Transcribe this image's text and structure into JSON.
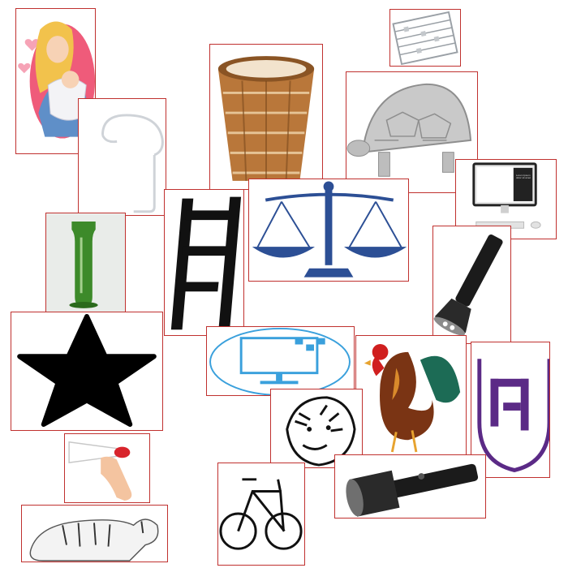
{
  "tiles": [
    {
      "icon": "mother-baby-icon"
    },
    {
      "icon": "hook-hanger-icon"
    },
    {
      "icon": "wicker-basket-icon"
    },
    {
      "icon": "abacus-icon"
    },
    {
      "icon": "tortoise-icon"
    },
    {
      "icon": "desktop-computer-icon"
    },
    {
      "icon": "glass-vase-icon"
    },
    {
      "icon": "ladder-icon"
    },
    {
      "icon": "balance-scale-icon"
    },
    {
      "icon": "flashlight-icon"
    },
    {
      "icon": "star-icon"
    },
    {
      "icon": "computer-monitor-icon"
    },
    {
      "icon": "rooster-icon"
    },
    {
      "icon": "logo-icon"
    },
    {
      "icon": "tiger-head-icon"
    },
    {
      "icon": "megaphone-icon"
    },
    {
      "icon": "bicycle-icon"
    },
    {
      "icon": "flashlight-icon"
    },
    {
      "icon": "tiger-lying-icon"
    }
  ],
  "computer_screen_text": "Lorem Ipsum dolor sit amet",
  "colors": {
    "tile_border": "#c0312f",
    "scale_blue": "#2c4f95",
    "monitor_blue": "#3aa0dc",
    "logo_purple": "#5b2a86",
    "vase_green": "#3d8a2a",
    "megaphone_red": "#d8242c",
    "basket_brown": "#b9773a",
    "mother_pink": "#ef5b7a"
  }
}
